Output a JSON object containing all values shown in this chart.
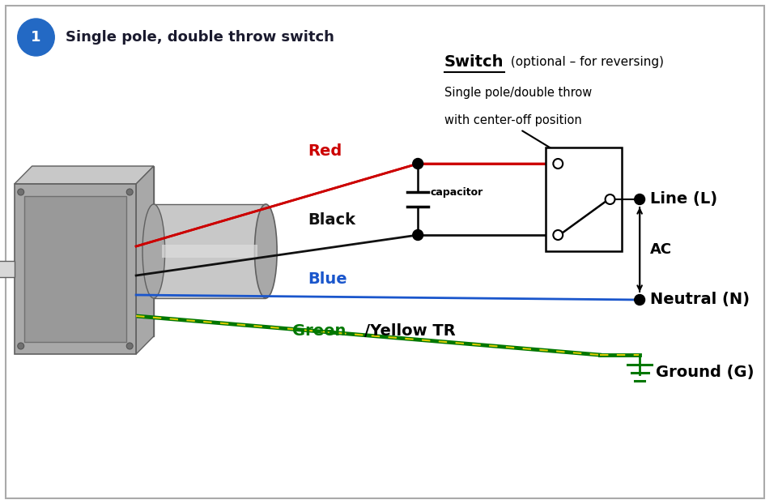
{
  "title": "Single pole, double throw switch",
  "bg_color": "#ffffff",
  "border_color": "#aaaaaa",
  "title_color": "#1a1a2e",
  "circle_badge_color": "#2369c4",
  "circle_badge_text": "1",
  "switch_label_bold": "Switch",
  "switch_label_normal": " (optional – for reversing)",
  "switch_desc_line1": "Single pole/double throw",
  "switch_desc_line2": "with center-off position",
  "wire_red_label": "Red",
  "wire_black_label": "Black",
  "wire_blue_label": "Blue",
  "wire_green_label": "Green",
  "wire_yellow_label": "/Yellow TR",
  "line_label": "Line (L)",
  "neutral_label": "Neutral (N)",
  "ground_label": "Ground (G)",
  "ac_label": "AC",
  "capacitor_label": "capacitor",
  "red_color": "#cc0000",
  "black_color": "#111111",
  "blue_color": "#1a56cc",
  "green_color": "#007700",
  "yellow_color": "#ddcc00",
  "motor_dark": "#808080",
  "motor_mid": "#a8a8a8",
  "motor_light": "#c8c8c8",
  "motor_highlight": "#d8d8d8",
  "motor_shadow": "#606060"
}
